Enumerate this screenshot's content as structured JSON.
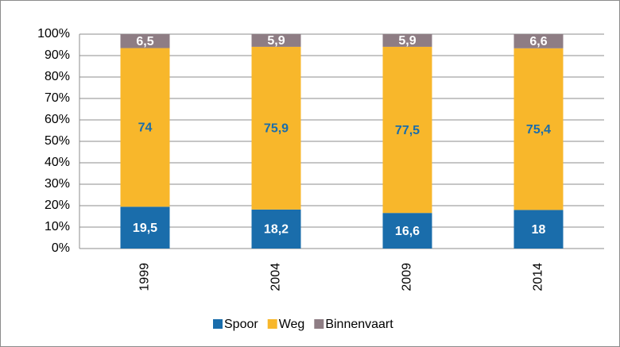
{
  "chart_data": {
    "type": "stacked_bar",
    "categories": [
      "1999",
      "2004",
      "2009",
      "2014"
    ],
    "series": [
      {
        "name": "Spoor",
        "color": "#1a6dab",
        "values": [
          19.5,
          18.2,
          16.6,
          18
        ],
        "value_labels": [
          "19,5",
          "18,2",
          "16,6",
          "18"
        ],
        "label_color": "#ffffff"
      },
      {
        "name": "Weg",
        "color": "#f8b72b",
        "values": [
          74,
          75.9,
          77.5,
          75.4
        ],
        "value_labels": [
          "74",
          "75,9",
          "77,5",
          "75,4"
        ],
        "label_color": "#1a6dab"
      },
      {
        "name": "Binnenvaart",
        "color": "#8e7d84",
        "values": [
          6.5,
          5.9,
          5.9,
          6.6
        ],
        "value_labels": [
          "6,5",
          "5,9",
          "5,9",
          "6,6"
        ],
        "label_color": "#ffffff"
      }
    ],
    "ylim": [
      0,
      100
    ],
    "yticks": [
      {
        "value": 0,
        "label": "0%"
      },
      {
        "value": 10,
        "label": "10%"
      },
      {
        "value": 20,
        "label": "20%"
      },
      {
        "value": 30,
        "label": "30%"
      },
      {
        "value": 40,
        "label": "40%"
      },
      {
        "value": 50,
        "label": "50%"
      },
      {
        "value": 60,
        "label": "60%"
      },
      {
        "value": 70,
        "label": "70%"
      },
      {
        "value": 80,
        "label": "80%"
      },
      {
        "value": 90,
        "label": "90%"
      },
      {
        "value": 100,
        "label": "100%"
      }
    ],
    "grid": true,
    "legend": "bottom"
  }
}
